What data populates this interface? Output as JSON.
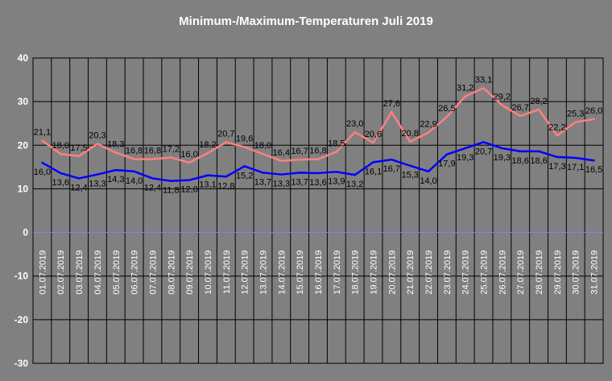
{
  "chart_data": {
    "type": "line",
    "title": "Minimum-/Maximum-Temperaturen Juli 2019",
    "xlabel": "",
    "ylabel": "",
    "ylim": [
      -30,
      40
    ],
    "yticks": [
      40,
      30,
      20,
      10,
      0,
      -10,
      -20,
      -30
    ],
    "grid": true,
    "categories": [
      "01.07.2019",
      "02.07.2019",
      "03.07.2019",
      "04.07.2019",
      "05.07.2019",
      "06.07.2019",
      "07.07.2019",
      "08.07.2019",
      "09.07.2019",
      "10.07.2019",
      "11.07.2019",
      "12.07.2019",
      "13.07.2019",
      "14.07.2019",
      "15.07.2019",
      "16.07.2019",
      "17.07.2019",
      "18.07.2019",
      "19.07.2019",
      "20.07.2019",
      "21.07.2019",
      "22.07.2019",
      "23.07.2019",
      "24.07.2019",
      "25.07.2019",
      "26.07.2019",
      "27.07.2019",
      "28.07.2019",
      "29.07.2019",
      "30.07.2019",
      "31.07.2019"
    ],
    "series": [
      {
        "color": "#ff8080",
        "values": [
          21.1,
          18.0,
          17.5,
          20.3,
          18.3,
          16.8,
          16.8,
          17.2,
          16.0,
          18.2,
          20.7,
          19.6,
          18.0,
          16.4,
          16.7,
          16.8,
          18.5,
          23.0,
          20.6,
          27.6,
          20.8,
          22.9,
          26.5,
          31.2,
          33.1,
          29.2,
          26.7,
          28.2,
          22.2,
          25.3,
          26.0
        ],
        "labels": [
          "21,1",
          "18,0",
          "17,5",
          "20,3",
          "18,3",
          "16,8",
          "16,8",
          "17,2",
          "16,0",
          "18,2",
          "20,7",
          "19,6",
          "18,0",
          "16,4",
          "16,7",
          "16,8",
          "18,5",
          "23,0",
          "20,6",
          "27,6",
          "20,8",
          "22,9",
          "26,5",
          "31,2",
          "33,1",
          "29,2",
          "26,7",
          "28,2",
          "22,2",
          "25,3",
          "26,0"
        ]
      },
      {
        "color": "#0000ff",
        "values": [
          16.0,
          13.6,
          12.4,
          13.3,
          14.3,
          14.0,
          12.4,
          11.8,
          12.0,
          13.1,
          12.8,
          15.2,
          13.7,
          13.3,
          13.7,
          13.6,
          13.9,
          13.2,
          16.1,
          16.7,
          15.3,
          14.0,
          17.9,
          19.3,
          20.7,
          19.3,
          18.6,
          18.6,
          17.3,
          17.1,
          16.5
        ],
        "labels": [
          "16,0",
          "13,6",
          "12,4",
          "13,3",
          "14,3",
          "14,0",
          "12,4",
          "11,8",
          "12,0",
          "13,1",
          "12,8",
          "15,2",
          "13,7",
          "13,3",
          "13,7",
          "13,6",
          "13,9",
          "13,2",
          "16,1",
          "16,7",
          "15,3",
          "14,0",
          "17,9",
          "19,3",
          "20,7",
          "19,3",
          "18,6",
          "18,6",
          "17,3",
          "17,1",
          "16,5"
        ]
      }
    ],
    "colors": {
      "background": "#808080",
      "gridline": "#000000",
      "zeroline": "#8080ff",
      "text": "#ffffff"
    }
  }
}
